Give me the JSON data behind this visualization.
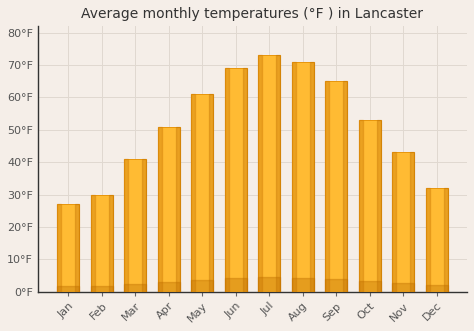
{
  "title": "Average monthly temperatures (°F ) in Lancaster",
  "months": [
    "Jan",
    "Feb",
    "Mar",
    "Apr",
    "May",
    "Jun",
    "Jul",
    "Aug",
    "Sep",
    "Oct",
    "Nov",
    "Dec"
  ],
  "values": [
    27,
    30,
    41,
    51,
    61,
    69,
    73,
    71,
    65,
    53,
    43,
    32
  ],
  "bar_color_main": "#FFBB33",
  "bar_color_edge": "#E8960A",
  "background_color": "#F5EEE8",
  "grid_color": "#E0D8D0",
  "spine_color": "#333333",
  "ylim": [
    0,
    82
  ],
  "yticks": [
    0,
    10,
    20,
    30,
    40,
    50,
    60,
    70,
    80
  ],
  "title_fontsize": 10,
  "tick_fontsize": 8,
  "figsize": [
    4.74,
    3.31
  ],
  "dpi": 100
}
